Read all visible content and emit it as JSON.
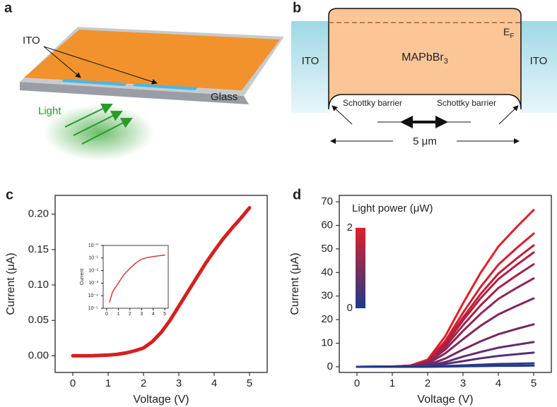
{
  "panels": {
    "a": {
      "label": "a",
      "ito": "ITO",
      "glass": "Glass",
      "light": "Light"
    },
    "b": {
      "label": "b",
      "ito_left": "ITO",
      "ito_right": "ITO",
      "material": {
        "main": "MAPbBr",
        "sub": "3"
      },
      "fermi": {
        "main": "E",
        "sub": "F"
      },
      "barrier_left": "Schottky barrier",
      "barrier_right": "Schottky barrier",
      "width": "5 μm"
    }
  },
  "chart_data": [
    {
      "type": "line",
      "label": "c",
      "xlabel": "Voltage (V)",
      "ylabel": "Current (μA)",
      "xlim": [
        -0.5,
        5.5
      ],
      "xticks": [
        0,
        1,
        2,
        3,
        4,
        5
      ],
      "ylim": [
        -0.0235,
        0.2265
      ],
      "yticks": [
        {
          "value": 0,
          "label": "0.00"
        },
        {
          "value": 0.05,
          "label": "0.05"
        },
        {
          "value": 0.1,
          "label": "0.10"
        },
        {
          "value": 0.15,
          "label": "0.15"
        },
        {
          "value": 0.2,
          "label": "0.20"
        }
      ],
      "x": [
        0,
        0.25,
        0.5,
        0.75,
        1,
        1.25,
        1.5,
        1.75,
        2,
        2.25,
        2.5,
        2.75,
        3,
        3.25,
        3.5,
        3.75,
        4,
        4.25,
        4.5,
        4.75,
        5
      ],
      "series": [
        {
          "color": "#d42020",
          "values": [
            0,
            0,
            0,
            0.0005,
            0.001,
            0.002,
            0.004,
            0.007,
            0.011,
            0.02,
            0.033,
            0.05,
            0.07,
            0.09,
            0.11,
            0.13,
            0.148,
            0.165,
            0.18,
            0.194,
            0.209
          ]
        }
      ]
    },
    {
      "type": "line",
      "log_y": true,
      "ylabel": "Current",
      "xlim": [
        -0.3,
        5.3
      ],
      "xticks": [
        0,
        1,
        2,
        3,
        4,
        5
      ],
      "ylim": [
        1e-05,
        1
      ],
      "yticks": [
        {
          "value": 1e-05,
          "label": "10⁻⁵"
        },
        {
          "value": 0.0001,
          "label": "10⁻⁴"
        },
        {
          "value": 0.001,
          "label": "10⁻³"
        },
        {
          "value": 0.01,
          "label": "10⁻²"
        },
        {
          "value": 0.1,
          "label": "10⁻¹"
        },
        {
          "value": 1,
          "label": "10⁻⁰"
        }
      ],
      "x": [
        0.25,
        0.5,
        1,
        1.5,
        2,
        2.5,
        3,
        3.5,
        4,
        4.5,
        5
      ],
      "series": [
        {
          "color": "#d42020",
          "values": [
            3e-05,
            0.0002,
            0.001,
            0.005,
            0.015,
            0.04,
            0.08,
            0.11,
            0.13,
            0.15,
            0.17
          ]
        }
      ]
    },
    {
      "type": "line",
      "label": "d",
      "xlabel": "Voltage (V)",
      "ylabel": "Current (μA)",
      "xlim": [
        -0.5,
        5.5
      ],
      "xticks": [
        0,
        1,
        2,
        3,
        4,
        5
      ],
      "ylim": [
        -2.4,
        72.7
      ],
      "yticks": [
        0,
        10,
        20,
        30,
        40,
        50,
        60,
        70
      ],
      "colorbar": {
        "title": "Light power (μW)",
        "ticks": [
          0,
          2
        ],
        "colors": [
          "#1c3c8c",
          "#e21f26"
        ]
      },
      "x": [
        0,
        1,
        1.5,
        2,
        2.5,
        3,
        3.5,
        4,
        4.5,
        5
      ],
      "series": [
        {
          "color": "#e21f26",
          "values": [
            0,
            0.1,
            0.5,
            3.0,
            13.0,
            26.9,
            39.9,
            51.0,
            59.0,
            66.5
          ]
        },
        {
          "color": "#d21f2f",
          "values": [
            0,
            0.1,
            0.5,
            2.5,
            11.0,
            22.9,
            33.9,
            43.3,
            50.1,
            56.5
          ]
        },
        {
          "color": "#c21f38",
          "values": [
            0,
            0.1,
            0.4,
            2.3,
            10.0,
            20.9,
            30.9,
            39.5,
            45.7,
            51.5
          ]
        },
        {
          "color": "#b22041",
          "values": [
            0,
            0.1,
            0.4,
            2.2,
            9.5,
            19.6,
            29.1,
            37.2,
            43.0,
            48.5
          ]
        },
        {
          "color": "#a3224a",
          "values": [
            0,
            0.1,
            0.3,
            2.0,
            8.5,
            17.6,
            26.1,
            33.4,
            38.6,
            43.5
          ]
        },
        {
          "color": "#932453",
          "values": [
            0,
            0.1,
            0.3,
            1.7,
            7.3,
            15.2,
            22.5,
            28.8,
            33.3,
            37.5
          ]
        },
        {
          "color": "#83265c",
          "values": [
            0,
            0,
            0.2,
            1.3,
            5.7,
            11.7,
            17.4,
            22.2,
            25.7,
            29
          ]
        },
        {
          "color": "#732865",
          "values": [
            0,
            0,
            0.1,
            0.8,
            3.5,
            7.3,
            10.8,
            13.8,
            16.0,
            18
          ]
        },
        {
          "color": "#642c6e",
          "values": [
            0,
            0,
            0.1,
            0.5,
            2.0,
            4.3,
            6.3,
            8.1,
            9.3,
            10.5
          ]
        },
        {
          "color": "#543077",
          "values": [
            0,
            0,
            0,
            0.3,
            1.2,
            2.4,
            3.6,
            4.6,
            5.3,
            6
          ]
        },
        {
          "color": "#3c3482",
          "values": [
            0,
            0,
            0,
            0.1,
            0.3,
            0.6,
            0.9,
            1.2,
            1.3,
            1.5
          ]
        },
        {
          "color": "#1c3c8c",
          "values": [
            0,
            0,
            0,
            0,
            0.1,
            0.2,
            0.3,
            0.4,
            0.4,
            0.5
          ]
        }
      ]
    }
  ]
}
